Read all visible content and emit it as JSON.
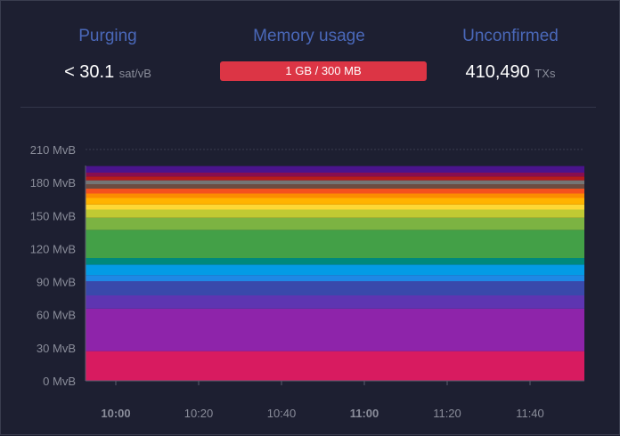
{
  "stats": {
    "purging": {
      "title": "Purging",
      "value": "< 30.1",
      "unit": "sat/vB"
    },
    "memory": {
      "title": "Memory usage",
      "value": "1 GB / 300 MB",
      "fill_fraction": 1.0,
      "color": "#dc3545"
    },
    "unconfirmed": {
      "title": "Unconfirmed",
      "value": "410,490",
      "unit": "TXs"
    }
  },
  "chart_data": {
    "type": "area",
    "stacked": true,
    "ylim": [
      0,
      210
    ],
    "yticks": [
      "0 MvB",
      "30 MvB",
      "60 MvB",
      "90 MvB",
      "120 MvB",
      "150 MvB",
      "180 MvB",
      "210 MvB"
    ],
    "xticks": [
      {
        "label": "10:00",
        "bold": true
      },
      {
        "label": "10:20",
        "bold": false
      },
      {
        "label": "10:40",
        "bold": false
      },
      {
        "label": "11:00",
        "bold": true
      },
      {
        "label": "11:20",
        "bold": false
      },
      {
        "label": "11:40",
        "bold": false
      }
    ],
    "x": [
      "09:53",
      "11:53"
    ],
    "series": [
      {
        "color": "#d81b60",
        "values": [
          27,
          27
        ]
      },
      {
        "color": "#8e24aa",
        "values": [
          38.5,
          38.5
        ]
      },
      {
        "color": "#5e35b1",
        "values": [
          12,
          12
        ]
      },
      {
        "color": "#3949ab",
        "values": [
          13,
          13
        ]
      },
      {
        "color": "#1e88e5",
        "values": [
          5.5,
          5.5
        ]
      },
      {
        "color": "#039be5",
        "values": [
          9.5,
          9.5
        ]
      },
      {
        "color": "#00897b",
        "values": [
          6,
          6
        ]
      },
      {
        "color": "#43a047",
        "values": [
          25.5,
          25.5
        ]
      },
      {
        "color": "#7cb342",
        "values": [
          11,
          11
        ]
      },
      {
        "color": "#c0ca33",
        "values": [
          7.5,
          7.5
        ]
      },
      {
        "color": "#fdd835",
        "values": [
          4.5,
          4.5
        ]
      },
      {
        "color": "#ffb300",
        "values": [
          6,
          6
        ]
      },
      {
        "color": "#fb8c00",
        "values": [
          4,
          4
        ]
      },
      {
        "color": "#f4511e",
        "values": [
          4.5,
          4.5
        ]
      },
      {
        "color": "#6d4c41",
        "values": [
          4,
          4
        ]
      },
      {
        "color": "#757575",
        "values": [
          3.5,
          3.5
        ]
      },
      {
        "color": "#b71c1c",
        "values": [
          3.5,
          3.5
        ]
      },
      {
        "color": "#880e4f",
        "values": [
          3.5,
          3.5
        ]
      },
      {
        "color": "#4a148c",
        "values": [
          6,
          6
        ]
      }
    ],
    "grid": "top dashed line only"
  }
}
